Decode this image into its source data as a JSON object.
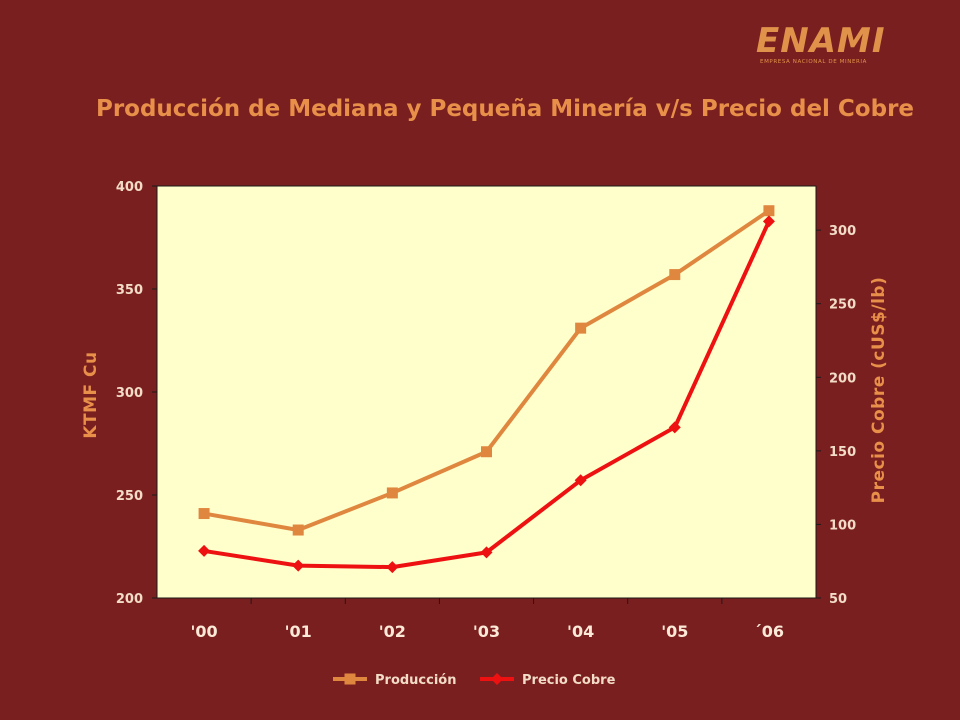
{
  "logo": {
    "name": "ENAMI",
    "subtitle": "EMPRESA NACIONAL DE MINERIA"
  },
  "chart_data": {
    "type": "line",
    "title": "Producción de Mediana y Pequeña Minería v/s Precio del Cobre",
    "categories": [
      "'00",
      "'01",
      "'02",
      "'03",
      "'04",
      "'05",
      "´06"
    ],
    "y_left": {
      "label": "KTMF Cu",
      "range": [
        200,
        400
      ],
      "ticks": [
        200,
        250,
        300,
        350,
        400
      ]
    },
    "y_right": {
      "label": "Precio Cobre  (cUS$/lb)",
      "range": [
        50,
        330
      ],
      "ticks": [
        50,
        100,
        150,
        200,
        250,
        300
      ]
    },
    "series": [
      {
        "name": "Producción",
        "axis": "left",
        "color": "#e0873f",
        "marker": "square",
        "values": [
          241,
          233,
          251,
          271,
          331,
          357,
          388
        ]
      },
      {
        "name": "Precio Cobre",
        "axis": "right",
        "color": "#ee1111",
        "marker": "diamond",
        "values": [
          82,
          72,
          71,
          81,
          130,
          166,
          306
        ]
      }
    ],
    "plot_background": "#ffffcc",
    "grid": false,
    "legend_position": "bottom"
  }
}
